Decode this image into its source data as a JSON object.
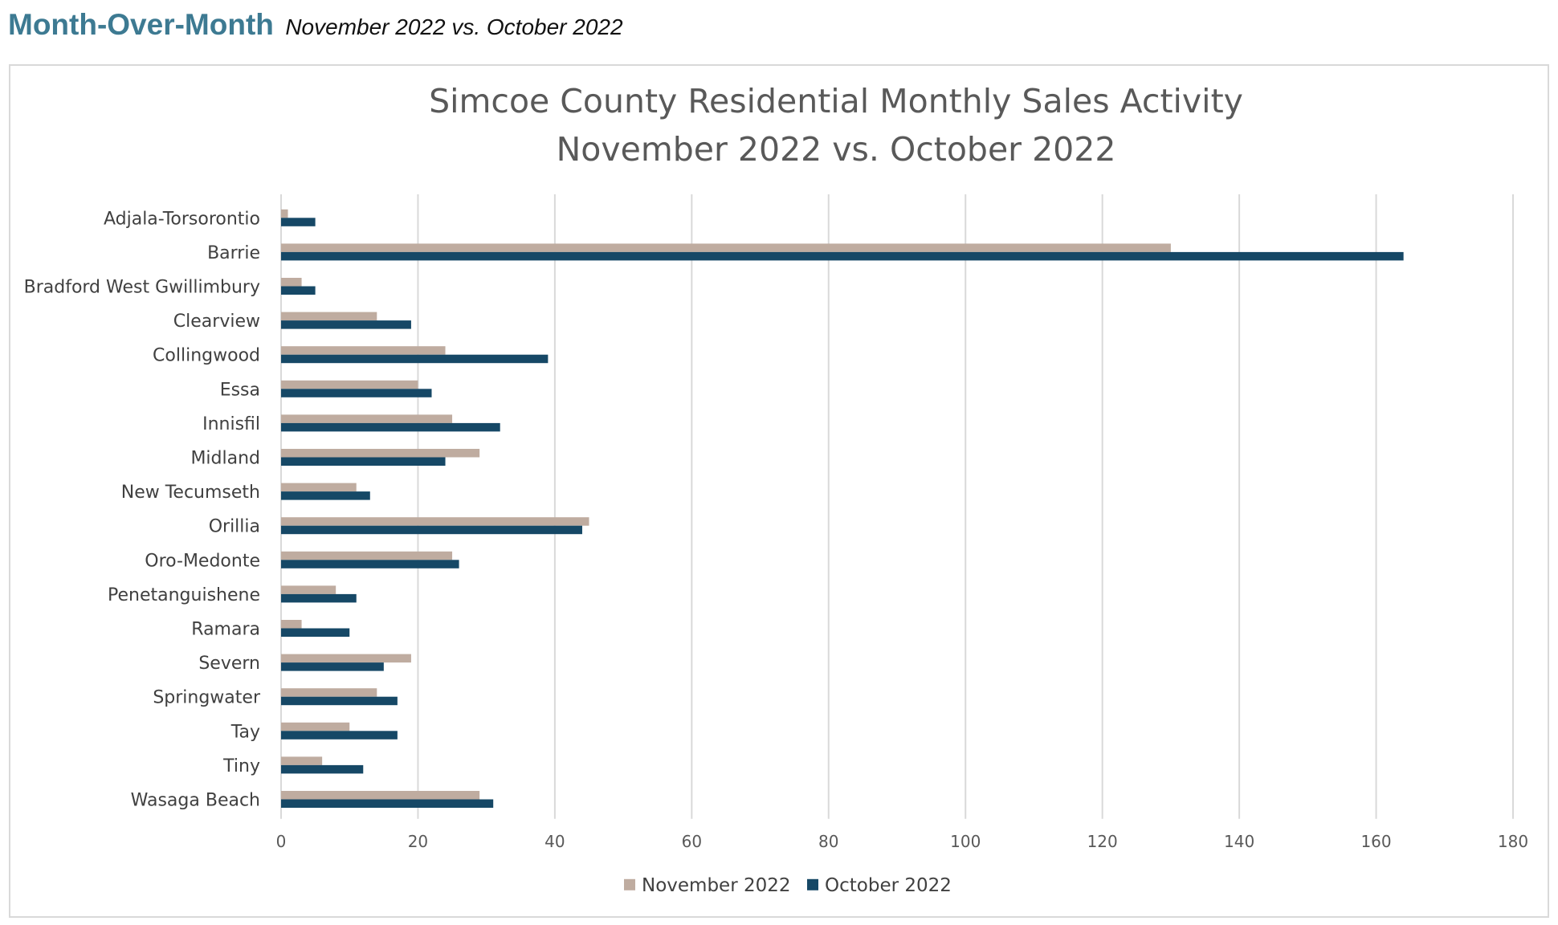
{
  "header": {
    "title": "Month-Over-Month",
    "subtitle": "November 2022 vs. October 2022"
  },
  "chart_data": {
    "type": "bar",
    "orientation": "horizontal",
    "title": [
      "Simcoe County Residential Monthly Sales Activity",
      "November 2022 vs. October 2022"
    ],
    "xlabel": "",
    "ylabel": "",
    "xlim": [
      0,
      180
    ],
    "xticks": [
      0,
      20,
      40,
      60,
      80,
      100,
      120,
      140,
      160,
      180
    ],
    "grid": "vertical",
    "legend_position": "bottom",
    "categories": [
      "Adjala-Torsorontio",
      "Barrie",
      "Bradford West Gwillimbury",
      "Clearview",
      "Collingwood",
      "Essa",
      "Innisfil",
      "Midland",
      "New Tecumseth",
      "Orillia",
      "Oro-Medonte",
      "Penetanguishene",
      "Ramara",
      "Severn",
      "Springwater",
      "Tay",
      "Tiny",
      "Wasaga Beach"
    ],
    "series": [
      {
        "name": "November 2022",
        "color": "#bfaca0",
        "values": [
          1,
          130,
          3,
          14,
          24,
          20,
          25,
          29,
          11,
          45,
          25,
          8,
          3,
          19,
          14,
          10,
          6,
          29
        ]
      },
      {
        "name": "October 2022",
        "color": "#164866",
        "values": [
          5,
          164,
          5,
          19,
          39,
          22,
          32,
          24,
          13,
          44,
          26,
          11,
          10,
          15,
          17,
          17,
          12,
          31
        ]
      }
    ]
  },
  "colors": {
    "header_accent": "#3d7a92",
    "gridline": "#d9d9d9",
    "frame_border": "#d9d9d9"
  }
}
